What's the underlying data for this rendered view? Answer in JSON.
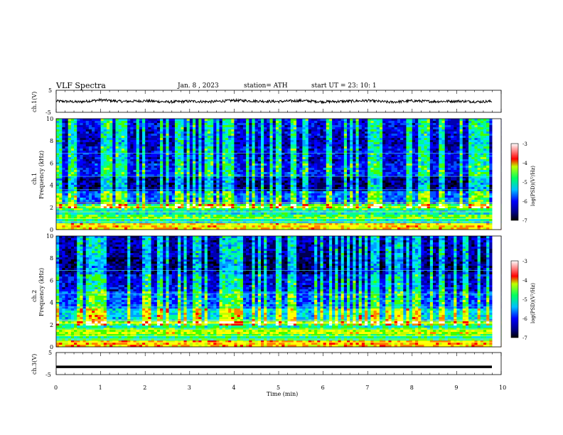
{
  "header": {
    "title": "VLF  Spectra",
    "date": "Jan.  8  , 2023",
    "station": "station= ATH",
    "start_ut": "start  UT  =    23: 10: 1"
  },
  "chart_data": [
    {
      "type": "line",
      "panel": "ch1-waveform",
      "ylabel": "ch.1(V)",
      "ylim": [
        -5,
        5
      ],
      "yticks": [
        "5",
        "-5"
      ],
      "x": [
        0,
        0.5,
        1,
        1.5,
        2,
        2.5,
        3,
        3.5,
        4,
        4.5,
        5,
        5.5,
        6,
        6.5,
        7,
        7.5,
        8,
        8.5,
        9,
        9.5,
        9.8
      ],
      "values": [
        0.1,
        -0.3,
        0.6,
        -0.1,
        0.2,
        -0.3,
        0.0,
        -0.2,
        0.4,
        0.1,
        -0.1,
        0.3,
        -0.2,
        0.0,
        0.3,
        -0.4,
        0.2,
        -0.1,
        0.1,
        -0.2,
        0.0
      ]
    },
    {
      "type": "heatmap",
      "panel": "ch1-spectrogram",
      "ylabel": "Frequency  (kHz)",
      "channel_label": "ch.1",
      "ylim": [
        0,
        10
      ],
      "yticks": [
        "0",
        "2",
        "4",
        "6",
        "8",
        "10"
      ],
      "xlim": [
        0,
        9.8
      ],
      "colorbar": {
        "label": "log(PSD)(V²/Hz)",
        "range": [
          -7,
          -3
        ],
        "ticks": [
          "-3",
          "-4",
          "-5",
          "-6",
          "-7"
        ]
      }
    },
    {
      "type": "heatmap",
      "panel": "ch2-spectrogram",
      "ylabel": "Frequency  (kHz)",
      "channel_label": "ch.2",
      "ylim": [
        0,
        10
      ],
      "yticks": [
        "0",
        "2",
        "4",
        "6",
        "8",
        "10"
      ],
      "xlim": [
        0,
        9.8
      ],
      "colorbar": {
        "label": "log(PSD)(V²/Hz)",
        "range": [
          -7,
          -3
        ],
        "ticks": [
          "-3",
          "-4",
          "-5",
          "-6",
          "-7"
        ]
      }
    },
    {
      "type": "line",
      "panel": "ch3-waveform",
      "ylabel": "ch.3(V)",
      "ylim": [
        -5,
        5
      ],
      "yticks": [
        "5",
        "-5"
      ],
      "x": [
        0,
        9.8
      ],
      "values": [
        -1.5,
        -1.5
      ]
    }
  ],
  "xaxis": {
    "label": "Time  (min)",
    "ticks": [
      "0",
      "1",
      "2",
      "3",
      "4",
      "5",
      "6",
      "7",
      "8",
      "9",
      "10"
    ],
    "xlim": [
      0,
      10
    ]
  },
  "colors": {
    "colormap": [
      "#000000",
      "#0000ff",
      "#00c0ff",
      "#00ff80",
      "#ffff00",
      "#ff0000",
      "#ffffff"
    ]
  }
}
